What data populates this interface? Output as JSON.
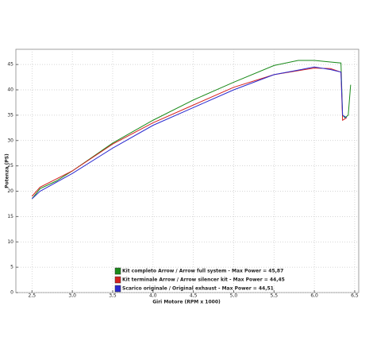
{
  "chart_data": {
    "type": "line",
    "x_label": "Giri Motore (RPM x 1000)",
    "y_label": "Potenza (PS)",
    "xlim": [
      2.3,
      6.55
    ],
    "ylim": [
      0,
      48
    ],
    "xticks": [
      {
        "value": 2.5,
        "label": "2,5"
      },
      {
        "value": 3,
        "label": "3,0"
      },
      {
        "value": 3.5,
        "label": "3,5"
      },
      {
        "value": 4,
        "label": "4,0"
      },
      {
        "value": 4.5,
        "label": "4,5"
      },
      {
        "value": 5,
        "label": "5,0"
      },
      {
        "value": 5.5,
        "label": "5,5"
      },
      {
        "value": 6,
        "label": "6,0"
      },
      {
        "value": 6.5,
        "label": "6,5"
      }
    ],
    "yticks": [
      0,
      5,
      10,
      15,
      20,
      25,
      30,
      35,
      40,
      45
    ],
    "grid": true,
    "legend": "bottom-center",
    "series": [
      {
        "name": "Kit completo Arrow / Arrow full system - Max Power = 45,87",
        "color": "#1a8a1a",
        "x": [
          2.5,
          2.6,
          2.8,
          3.0,
          3.5,
          4.0,
          4.5,
          5.0,
          5.5,
          5.8,
          6.0,
          6.2,
          6.33,
          6.35,
          6.38,
          6.42,
          6.45
        ],
        "values": [
          18.5,
          20.5,
          22,
          24,
          29.5,
          34,
          38,
          41.5,
          44.8,
          45.8,
          45.8,
          45.5,
          45.3,
          35,
          34.5,
          35,
          41
        ]
      },
      {
        "name": "Kit terminale Arrow / Arrow silencer kit - Max Power = 44,45",
        "color": "#d42020",
        "x": [
          2.5,
          2.6,
          3.0,
          3.5,
          4.0,
          4.5,
          5.0,
          5.5,
          6.0,
          6.2,
          6.33,
          6.35,
          6.4
        ],
        "values": [
          19,
          20.8,
          24,
          29.3,
          33.5,
          37,
          40.5,
          43,
          44.3,
          44.2,
          43.5,
          34,
          34.5
        ]
      },
      {
        "name": "Scarico originale / Original exhaust - Max Power = 44,51",
        "color": "#2a2ad0",
        "x": [
          2.5,
          2.6,
          3.0,
          3.5,
          4.0,
          4.5,
          5.0,
          5.5,
          6.0,
          6.2,
          6.33,
          6.35,
          6.4
        ],
        "values": [
          18.5,
          20,
          23.5,
          28.5,
          33,
          36.5,
          40,
          43,
          44.5,
          44,
          43.5,
          35,
          34.5
        ]
      }
    ]
  }
}
